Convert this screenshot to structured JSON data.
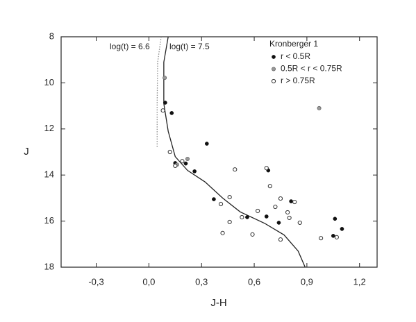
{
  "chart_data": {
    "type": "scatter",
    "x_label": "J-H",
    "y_label": "J",
    "xlim": [
      -0.5,
      1.3
    ],
    "xticks": [
      {
        "value": -0.3,
        "label": "-0,3"
      },
      {
        "value": 0.0,
        "label": "0,0"
      },
      {
        "value": 0.3,
        "label": "0,3"
      },
      {
        "value": 0.6,
        "label": "0,6"
      },
      {
        "value": 0.9,
        "label": "0,9"
      },
      {
        "value": 1.2,
        "label": "1,2"
      }
    ],
    "ylim": [
      8,
      18
    ],
    "yticks": [
      8,
      10,
      12,
      14,
      16,
      18
    ],
    "y_inverted": true,
    "legend_title": "Kronberger 1",
    "series": [
      {
        "name": "r < 0.5R",
        "marker": "filled",
        "color": "#111111",
        "x": [
          0.093,
          0.13,
          0.33,
          0.15,
          0.21,
          0.26,
          0.68,
          0.37,
          0.56,
          0.67,
          0.74,
          0.81,
          1.06,
          1.1,
          1.05
        ],
        "values": [
          10.86,
          11.31,
          12.64,
          13.48,
          13.5,
          13.84,
          13.8,
          15.05,
          15.83,
          15.8,
          16.07,
          15.14,
          15.9,
          16.34,
          16.64
        ]
      },
      {
        "name": "0.5R < r < 0.75R",
        "marker": "gray",
        "color": "#999999",
        "x": [
          0.09,
          0.22,
          0.97,
          0.16
        ],
        "values": [
          9.78,
          13.3,
          11.1,
          13.55
        ]
      },
      {
        "name": "r > 0.75R",
        "marker": "open",
        "color": "#333333",
        "x": [
          0.08,
          0.12,
          0.15,
          0.19,
          0.41,
          0.46,
          0.49,
          0.46,
          0.42,
          0.53,
          0.62,
          0.59,
          0.67,
          0.69,
          0.72,
          0.75,
          0.75,
          0.79,
          0.8,
          0.83,
          0.86,
          0.98,
          1.07
        ],
        "values": [
          11.2,
          13.0,
          13.6,
          13.4,
          15.26,
          14.96,
          13.76,
          16.04,
          16.52,
          15.83,
          15.56,
          16.58,
          13.7,
          14.48,
          15.38,
          15.02,
          16.8,
          15.62,
          15.86,
          15.17,
          16.07,
          16.74,
          16.7
        ]
      }
    ],
    "lines": [
      {
        "label": "log(t) = 6.6",
        "color": "#888888",
        "dash": "1.5,2",
        "x": [
          0.07,
          0.05,
          0.047,
          0.047
        ],
        "values": [
          8,
          9.1,
          10.9,
          12.8
        ]
      },
      {
        "label": "log(t) = 7.5",
        "color": "#222222",
        "dash": "none",
        "x": [
          0.11,
          0.085,
          0.085,
          0.11,
          0.15,
          0.22,
          0.32,
          0.42,
          0.52,
          0.66,
          0.77,
          0.85,
          0.89
        ],
        "values": [
          8,
          9.1,
          10.9,
          12.1,
          13.2,
          13.8,
          14.3,
          15.0,
          15.6,
          16.1,
          16.6,
          17.3,
          18
        ]
      }
    ]
  }
}
